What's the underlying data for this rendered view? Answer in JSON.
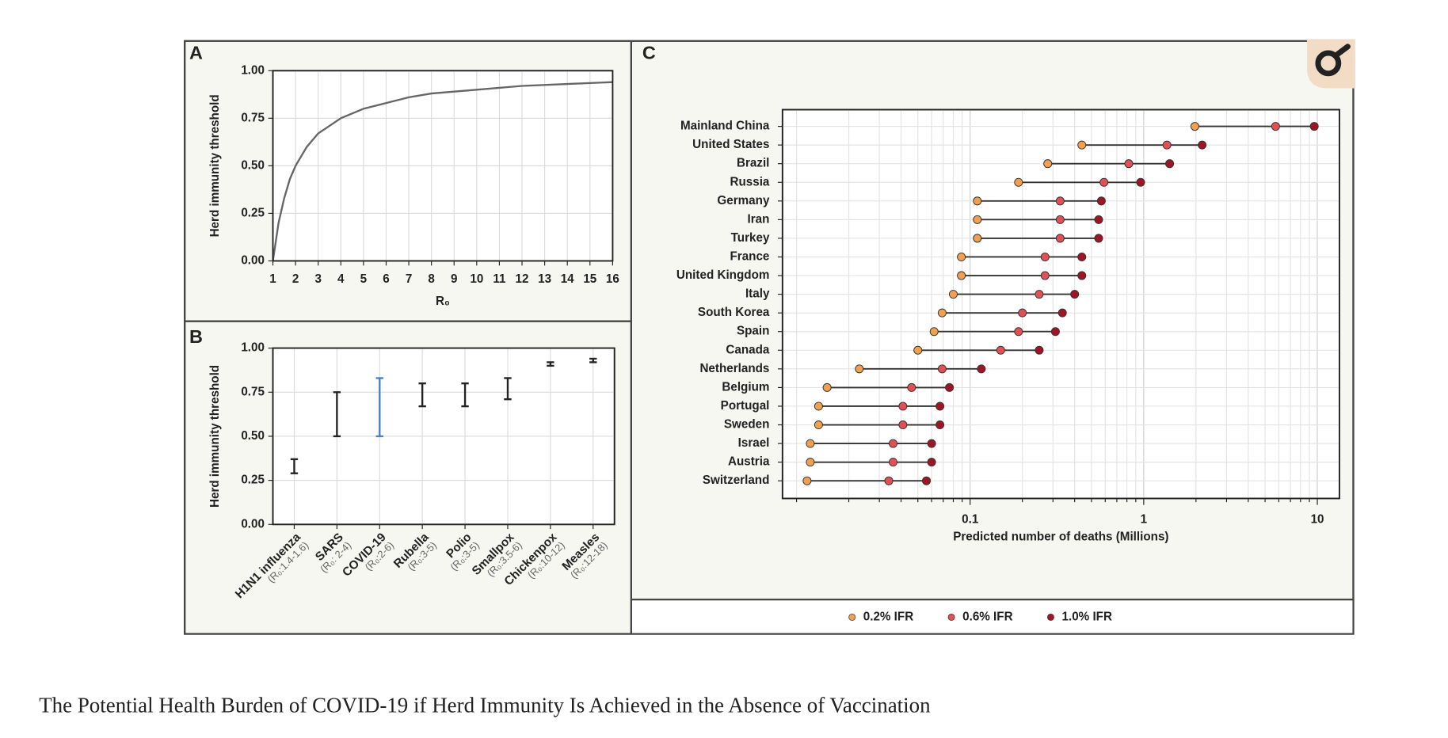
{
  "caption": "The Potential Health Burden of COVID-19 if Herd Immunity Is Achieved in the Absence of Vaccination",
  "chart_data": [
    {
      "type": "line",
      "panel": "A",
      "ylabel": "Herd immunity threshold",
      "xlabel": "R₀",
      "x": [
        1,
        1.25,
        1.5,
        1.75,
        2,
        2.5,
        3,
        3.5,
        4,
        5,
        6,
        7,
        8,
        10,
        12,
        14,
        16
      ],
      "values": [
        0,
        0.2,
        0.33,
        0.43,
        0.5,
        0.6,
        0.67,
        0.71,
        0.75,
        0.8,
        0.83,
        0.86,
        0.88,
        0.9,
        0.92,
        0.93,
        0.94
      ],
      "color": "#666666",
      "xlim": [
        1,
        16
      ],
      "ylim": [
        0,
        1
      ],
      "xticks": [
        1,
        2,
        3,
        4,
        5,
        6,
        7,
        8,
        9,
        10,
        11,
        12,
        13,
        14,
        15,
        16
      ],
      "yticks": [
        {
          "value": 0,
          "label": "0.00"
        },
        {
          "value": 0.25,
          "label": "0.25"
        },
        {
          "value": 0.5,
          "label": "0.50"
        },
        {
          "value": 0.75,
          "label": "0.75"
        },
        {
          "value": 1,
          "label": "1.00"
        }
      ],
      "grid": true
    },
    {
      "type": "range",
      "panel": "B",
      "ylabel": "Herd immunity threshold",
      "categories": [
        "H1N1 influenza",
        "SARS",
        "COVID-19",
        "Rubella",
        "Polio",
        "Smallpox",
        "Chickenpox",
        "Measles"
      ],
      "sublabels": [
        "(R₀:1.4-1.6)",
        "(R₀: 2-4)",
        "(R₀:2-6)",
        "(R₀:3-5)",
        "(R₀:3-5)",
        "(R₀:3.5-6)",
        "(R₀:10-12)",
        "(R₀:12-18)"
      ],
      "low": [
        0.29,
        0.5,
        0.5,
        0.67,
        0.67,
        0.71,
        0.9,
        0.92
      ],
      "high": [
        0.37,
        0.75,
        0.83,
        0.8,
        0.8,
        0.83,
        0.92,
        0.94
      ],
      "colors": [
        "#222222",
        "#222222",
        "#4a7fc1",
        "#222222",
        "#222222",
        "#222222",
        "#222222",
        "#222222"
      ],
      "ylim": [
        0,
        1
      ],
      "yticks": [
        {
          "value": 0,
          "label": "0.00"
        },
        {
          "value": 0.25,
          "label": "0.25"
        },
        {
          "value": 0.5,
          "label": "0.50"
        },
        {
          "value": 0.75,
          "label": "0.75"
        },
        {
          "value": 1,
          "label": "1.00"
        }
      ],
      "grid": true
    },
    {
      "type": "dumbbell",
      "panel": "C",
      "xlabel": "Predicted number of deaths (Millions)",
      "categories": [
        "Mainland China",
        "United States",
        "Brazil",
        "Russia",
        "Germany",
        "Iran",
        "Turkey",
        "France",
        "United Kingdom",
        "Italy",
        "South Korea",
        "Spain",
        "Canada",
        "Netherlands",
        "Belgium",
        "Portugal",
        "Sweden",
        "Israel",
        "Austria",
        "Switzerland"
      ],
      "series": [
        {
          "name": "0.2% IFR",
          "color": "#f0a050",
          "values": [
            1.97,
            0.44,
            0.28,
            0.19,
            0.11,
            0.11,
            0.11,
            0.089,
            0.089,
            0.08,
            0.069,
            0.062,
            0.05,
            0.023,
            0.015,
            0.0134,
            0.0134,
            0.012,
            0.012,
            0.0115
          ]
        },
        {
          "name": "0.6% IFR",
          "color": "#e05055",
          "values": [
            5.75,
            1.36,
            0.82,
            0.59,
            0.33,
            0.33,
            0.33,
            0.27,
            0.27,
            0.25,
            0.2,
            0.19,
            0.15,
            0.069,
            0.046,
            0.041,
            0.041,
            0.036,
            0.036,
            0.034
          ]
        },
        {
          "name": "1.0% IFR",
          "color": "#a01525",
          "values": [
            9.6,
            2.17,
            1.41,
            0.96,
            0.57,
            0.55,
            0.55,
            0.44,
            0.44,
            0.4,
            0.34,
            0.31,
            0.25,
            0.116,
            0.076,
            0.067,
            0.067,
            0.06,
            0.06,
            0.056
          ]
        }
      ],
      "xscale": "log",
      "xlim": [
        0.0083,
        13.4
      ],
      "xticks": [
        0.1,
        1,
        10
      ],
      "xminorticks": [
        0.01,
        0.02,
        0.03,
        0.04,
        0.05,
        0.06,
        0.07,
        0.08,
        0.09,
        0.2,
        0.3,
        0.4,
        0.5,
        0.6,
        0.7,
        0.8,
        0.9,
        2,
        3,
        4,
        5,
        6,
        7,
        8,
        9
      ],
      "grid": true,
      "legend": "bottom"
    }
  ]
}
